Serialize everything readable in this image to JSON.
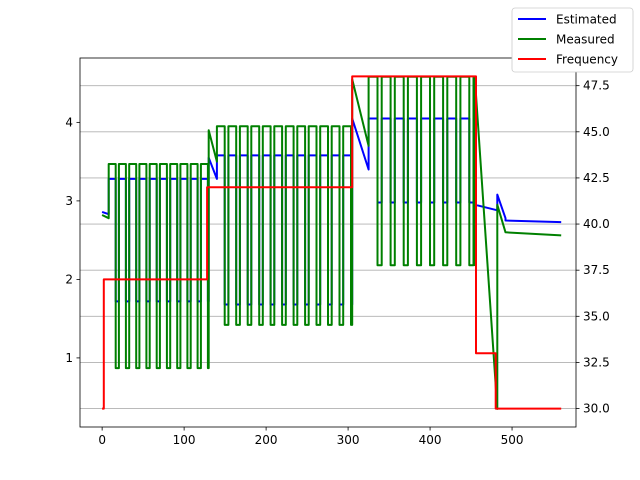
{
  "chart_data": {
    "type": "line",
    "title": "",
    "xlabel": "",
    "ylabel_left": "",
    "ylabel_right": "",
    "xlim": [
      -27,
      578
    ],
    "ylim_left": [
      0.12,
      4.82
    ],
    "ylim_right": [
      29,
      49
    ],
    "x_ticks": [
      0,
      100,
      200,
      300,
      400,
      500
    ],
    "y_left_ticks": [
      1,
      2,
      3,
      4
    ],
    "y_right_ticks": [
      30.0,
      32.5,
      35.0,
      37.5,
      40.0,
      42.5,
      45.0,
      47.5
    ],
    "y_right_tick_labels": [
      "30.0",
      "32.5",
      "35.0",
      "37.5",
      "40.0",
      "42.5",
      "45.0",
      "47.5"
    ],
    "grid": "horizontal lines at right-axis ticks",
    "legend_position": "top-right",
    "colors": {
      "Estimated": "#0000ff",
      "Measured": "#008000",
      "Frequency": "#ff0000"
    },
    "series": [
      {
        "name": "Estimated",
        "axis": "left",
        "shape": "square wave",
        "segments": [
          {
            "x_start": 0,
            "x_end": 8,
            "high": 2.86,
            "low": 2.83
          },
          {
            "x_start": 8,
            "x_end": 130,
            "high": 3.28,
            "low": 1.72,
            "period": 12.5
          },
          {
            "x_start": 130,
            "x_end": 140,
            "high": 3.55,
            "low": 3.28
          },
          {
            "x_start": 140,
            "x_end": 305,
            "high": 3.58,
            "low": 1.68,
            "period": 14
          },
          {
            "x_start": 305,
            "x_end": 325,
            "high": 4.05,
            "low": 3.4
          },
          {
            "x_start": 325,
            "x_end": 455,
            "high": 4.05,
            "low": 2.98,
            "period": 16
          },
          {
            "x_start": 455,
            "x_end": 482,
            "high": 2.95,
            "low": 2.88
          },
          {
            "x_start": 482,
            "x_end": 492,
            "high": 3.08,
            "low": 2.78
          },
          {
            "x_start": 492,
            "x_end": 560,
            "high": 2.75,
            "low": 2.73
          }
        ]
      },
      {
        "name": "Measured",
        "axis": "left",
        "shape": "square wave",
        "segments": [
          {
            "x_start": 0,
            "x_end": 8,
            "high": 2.82,
            "low": 2.78
          },
          {
            "x_start": 8,
            "x_end": 130,
            "high": 3.47,
            "low": 0.87,
            "period": 12.5
          },
          {
            "x_start": 130,
            "x_end": 140,
            "high": 3.9,
            "low": 3.5
          },
          {
            "x_start": 140,
            "x_end": 305,
            "high": 3.95,
            "low": 1.42,
            "period": 14
          },
          {
            "x_start": 305,
            "x_end": 325,
            "high": 4.55,
            "low": 3.7
          },
          {
            "x_start": 325,
            "x_end": 455,
            "high": 4.58,
            "low": 2.18,
            "period": 16
          },
          {
            "x_start": 455,
            "x_end": 482,
            "high": 4.5,
            "low": 0.35
          },
          {
            "x_start": 482,
            "x_end": 492,
            "high": 2.95,
            "low": 2.6
          },
          {
            "x_start": 492,
            "x_end": 560,
            "high": 2.6,
            "low": 2.56
          }
        ]
      },
      {
        "name": "Frequency",
        "axis": "right",
        "shape": "step",
        "points": [
          [
            0,
            30
          ],
          [
            2,
            30
          ],
          [
            2,
            37
          ],
          [
            128,
            37
          ],
          [
            128,
            42
          ],
          [
            305,
            42
          ],
          [
            305,
            48
          ],
          [
            456,
            48
          ],
          [
            456,
            33
          ],
          [
            480,
            33
          ],
          [
            480,
            30
          ],
          [
            560,
            30
          ]
        ]
      }
    ]
  }
}
